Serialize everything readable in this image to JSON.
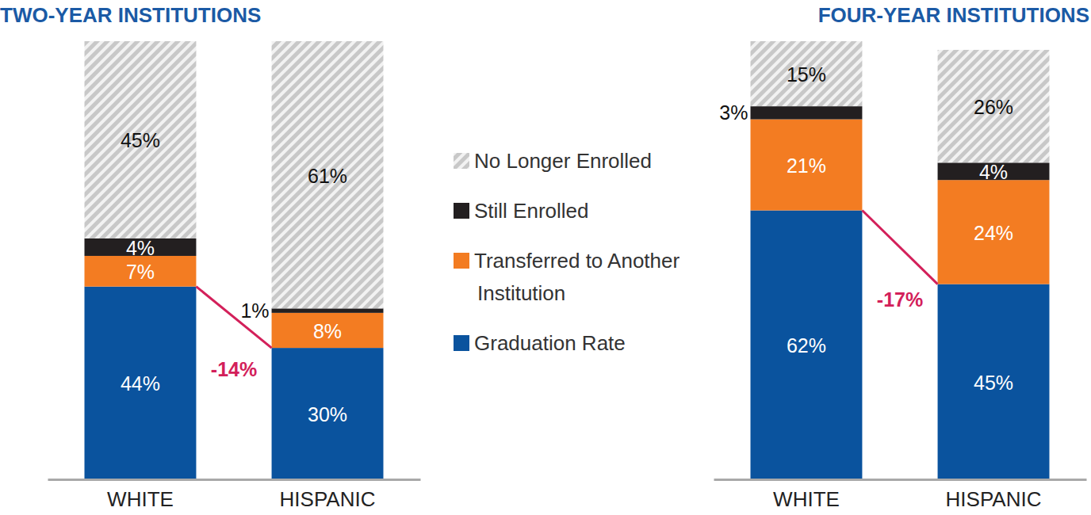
{
  "chart_data": [
    {
      "type": "bar",
      "title": "TWO-YEAR INSTITUTIONS",
      "stacked": true,
      "data_labels": true,
      "tick_labels": "x",
      "legend": "right",
      "categories": [
        "WHITE",
        "HISPANIC"
      ],
      "ylim": [
        0,
        100
      ],
      "series": [
        {
          "name": "Graduation Rate",
          "color": "#0a539e",
          "values": [
            44,
            30
          ],
          "value_labels": [
            "44%",
            "30%"
          ]
        },
        {
          "name": "Transferred to Another Institution",
          "color": "#f37c22",
          "values": [
            7,
            8
          ],
          "value_labels": [
            "7%",
            "8%"
          ]
        },
        {
          "name": "Still Enrolled",
          "color": "#231f20",
          "values": [
            4,
            1
          ],
          "value_labels": [
            "4%",
            "1%"
          ]
        },
        {
          "name": "No Longer Enrolled",
          "color": "#c8c8c8",
          "values": [
            45,
            61
          ],
          "value_labels": [
            "45%",
            "61%"
          ]
        }
      ],
      "annotations": [
        {
          "text": "-14%"
        }
      ]
    },
    {
      "type": "bar",
      "title": "FOUR-YEAR INSTITUTIONS",
      "stacked": true,
      "data_labels": true,
      "tick_labels": "x",
      "categories": [
        "WHITE",
        "HISPANIC"
      ],
      "ylim": [
        0,
        101
      ],
      "series": [
        {
          "color": "#0a539e",
          "values": [
            62,
            45
          ],
          "value_labels": [
            "62%",
            "45%"
          ]
        },
        {
          "color": "#f37c22",
          "values": [
            21,
            24
          ],
          "value_labels": [
            "21%",
            "24%"
          ]
        },
        {
          "color": "#231f20",
          "values": [
            3,
            4
          ],
          "value_labels": [
            "3%",
            "4%"
          ]
        },
        {
          "color": "#c8c8c8",
          "values": [
            15,
            26
          ],
          "value_labels": [
            "15%",
            "26%"
          ]
        }
      ],
      "annotations": [
        {
          "text": "-17%"
        }
      ]
    }
  ]
}
